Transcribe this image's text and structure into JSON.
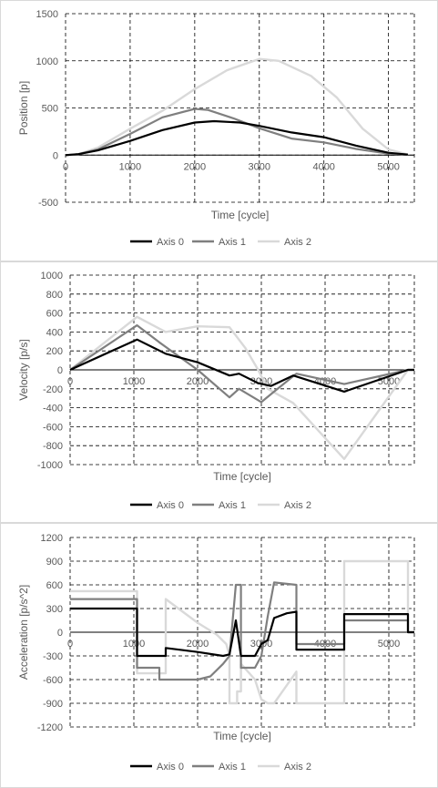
{
  "chart_data": [
    {
      "type": "line",
      "title": "",
      "xlabel": "Time [cycle]",
      "ylabel": "Position [p]",
      "xlim": [
        0,
        5400
      ],
      "ylim": [
        -500,
        1500
      ],
      "xticks": [
        0,
        1000,
        2000,
        3000,
        4000,
        5000
      ],
      "yticks": [
        -500,
        0,
        500,
        1000,
        1500
      ],
      "x_tick_labels": [
        "0",
        "1000",
        "2000",
        "3000",
        "4000",
        "5000"
      ],
      "y_tick_labels": [
        "-500",
        "0",
        "500",
        "1000",
        "1500"
      ],
      "grid": true,
      "legend": "bottom",
      "series": [
        {
          "name": "Axis 0",
          "color": "#000000",
          "x": [
            0,
            200,
            500,
            1000,
            1500,
            2000,
            2300,
            2700,
            3000,
            3500,
            4000,
            4500,
            5000,
            5300
          ],
          "y": [
            0,
            10,
            50,
            150,
            265,
            345,
            360,
            345,
            310,
            240,
            190,
            100,
            25,
            5
          ]
        },
        {
          "name": "Axis 1",
          "color": "#7f7f7f",
          "x": [
            0,
            200,
            500,
            1000,
            1500,
            2000,
            2200,
            2600,
            3000,
            3500,
            4000,
            4500,
            5000,
            5300
          ],
          "y": [
            0,
            10,
            60,
            225,
            400,
            490,
            480,
            390,
            285,
            175,
            135,
            65,
            15,
            5
          ]
        },
        {
          "name": "Axis 2",
          "color": "#d9d9d9",
          "x": [
            0,
            200,
            500,
            1000,
            1500,
            2000,
            2500,
            3000,
            3300,
            3800,
            4200,
            4600,
            5000,
            5300
          ],
          "y": [
            0,
            10,
            80,
            280,
            470,
            700,
            900,
            1020,
            1000,
            840,
            610,
            280,
            60,
            5
          ]
        }
      ]
    },
    {
      "type": "line",
      "title": "",
      "xlabel": "Time [cycle]",
      "ylabel": "Velocity [p/s]",
      "xlim": [
        0,
        5400
      ],
      "ylim": [
        -1000,
        1000
      ],
      "xticks": [
        0,
        1000,
        2000,
        3000,
        4000,
        5000
      ],
      "yticks": [
        -1000,
        -800,
        -600,
        -400,
        -200,
        0,
        200,
        400,
        600,
        800,
        1000
      ],
      "x_tick_labels": [
        "0",
        "1000",
        "2000",
        "3000",
        "4000",
        "5000"
      ],
      "y_tick_labels": [
        "-1000",
        "-800",
        "-600",
        "-400",
        "-200",
        "0",
        "200",
        "400",
        "600",
        "800",
        "1000"
      ],
      "grid": true,
      "legend": "bottom",
      "series": [
        {
          "name": "Axis 0",
          "color": "#000000",
          "x": [
            0,
            1050,
            1500,
            2000,
            2500,
            2650,
            2950,
            3150,
            3500,
            4300,
            5300,
            5400
          ],
          "y": [
            0,
            320,
            170,
            80,
            -60,
            -40,
            -140,
            -170,
            -60,
            -230,
            0,
            0
          ]
        },
        {
          "name": "Axis 1",
          "color": "#7f7f7f",
          "x": [
            0,
            1050,
            1400,
            2000,
            2500,
            2650,
            3000,
            3200,
            3550,
            4300,
            5300,
            5400
          ],
          "y": [
            0,
            470,
            290,
            0,
            -290,
            -200,
            -340,
            -230,
            -40,
            -150,
            0,
            0
          ]
        },
        {
          "name": "Axis 2",
          "color": "#d9d9d9",
          "x": [
            0,
            1050,
            1500,
            2000,
            2500,
            2750,
            2950,
            3100,
            3500,
            4300,
            5300,
            5400
          ],
          "y": [
            0,
            560,
            400,
            460,
            450,
            230,
            0,
            -200,
            -350,
            -940,
            0,
            0
          ]
        }
      ]
    },
    {
      "type": "line",
      "title": "",
      "xlabel": "Time [cycle]",
      "ylabel": "Acceleration [p/s^2]",
      "xlim": [
        0,
        5400
      ],
      "ylim": [
        -1200,
        1200
      ],
      "xticks": [
        0,
        1000,
        2000,
        3000,
        4000,
        5000
      ],
      "yticks": [
        -1200,
        -900,
        -600,
        -300,
        0,
        300,
        600,
        900,
        1200
      ],
      "x_tick_labels": [
        "0",
        "1000",
        "2000",
        "3000",
        "4000",
        "5000"
      ],
      "y_tick_labels": [
        "-1200",
        "-900",
        "-600",
        "-300",
        "0",
        "300",
        "600",
        "900",
        "1200"
      ],
      "grid": true,
      "legend": "bottom",
      "series": [
        {
          "name": "Axis 0",
          "color": "#000000",
          "x": [
            0,
            1050,
            1050,
            1500,
            1500,
            2000,
            2400,
            2500,
            2600,
            2600,
            2680,
            2680,
            2900,
            3000,
            3100,
            3200,
            3400,
            3550,
            3550,
            4300,
            4300,
            5300,
            5300,
            5400
          ],
          "y": [
            300,
            300,
            -300,
            -300,
            -200,
            -250,
            -300,
            -280,
            150,
            150,
            -300,
            -300,
            -300,
            -150,
            -100,
            180,
            240,
            260,
            -220,
            -220,
            230,
            230,
            0,
            0
          ]
        },
        {
          "name": "Axis 1",
          "color": "#7f7f7f",
          "x": [
            0,
            1050,
            1050,
            1400,
            1400,
            2000,
            2200,
            2400,
            2500,
            2600,
            2680,
            2680,
            2900,
            3000,
            3100,
            3200,
            3550,
            3550,
            4300,
            4300,
            5300,
            5300,
            5400
          ],
          "y": [
            420,
            420,
            -450,
            -450,
            -600,
            -600,
            -560,
            -400,
            -300,
            600,
            600,
            -450,
            -450,
            -300,
            200,
            630,
            600,
            -150,
            -150,
            150,
            150,
            0,
            0
          ]
        },
        {
          "name": "Axis 2",
          "color": "#d9d9d9",
          "x": [
            0,
            1050,
            1050,
            1500,
            1500,
            2000,
            2300,
            2450,
            2500,
            2500,
            2620,
            2620,
            2680,
            2680,
            2900,
            3000,
            3100,
            3200,
            3550,
            3550,
            4300,
            4300,
            5300,
            5300,
            5400
          ],
          "y": [
            520,
            520,
            -520,
            -520,
            420,
            120,
            -30,
            -150,
            -300,
            -900,
            -900,
            -750,
            -750,
            -400,
            -600,
            -850,
            -900,
            -900,
            -500,
            -900,
            -900,
            900,
            900,
            0,
            0
          ]
        }
      ]
    }
  ]
}
